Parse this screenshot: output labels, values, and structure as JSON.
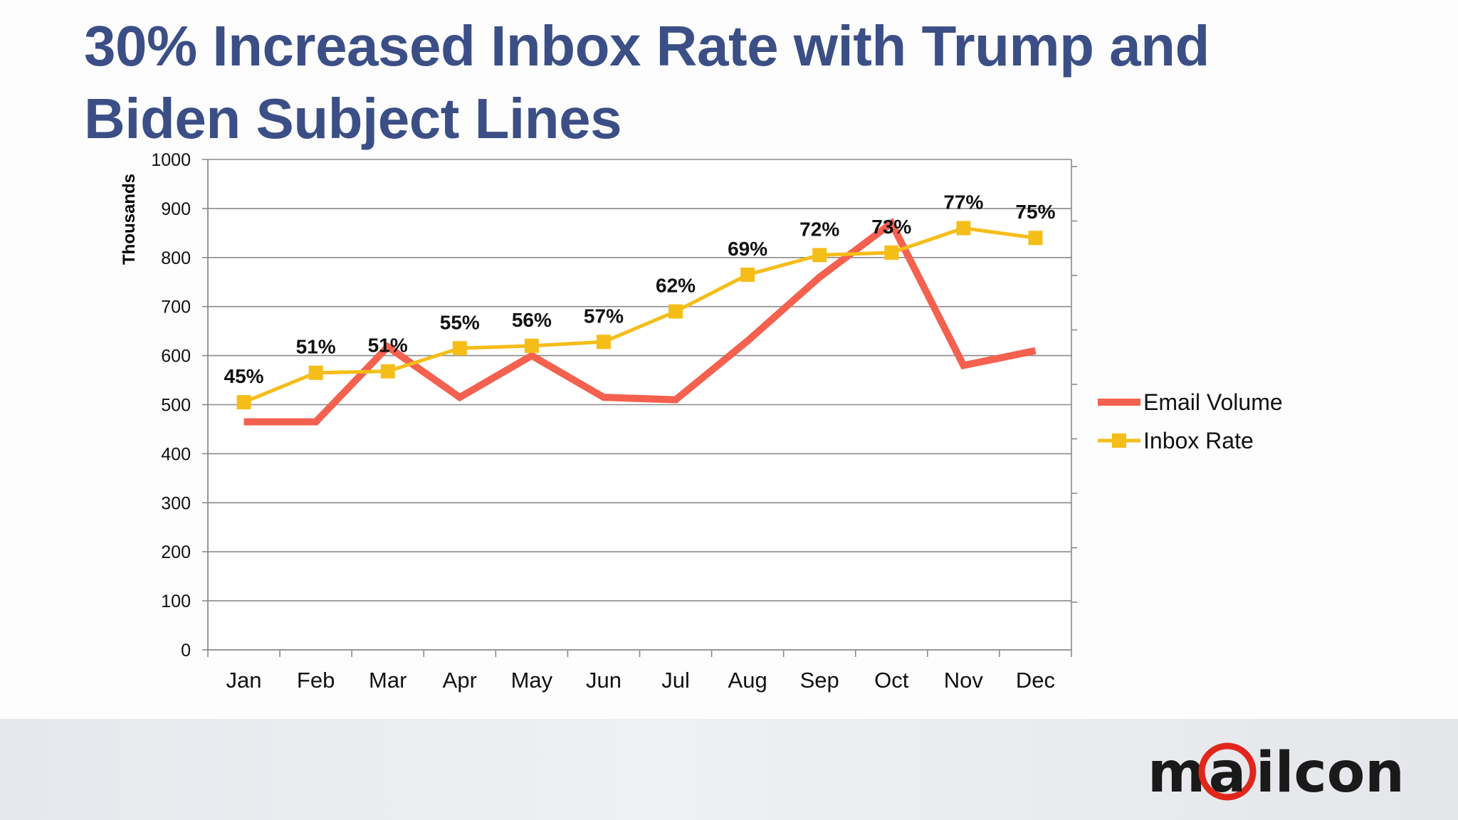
{
  "title": "30% Increased Inbox Rate with Trump and Biden Subject Lines",
  "brand": {
    "logo_text": "m@ilcon",
    "colors": {
      "title": "#3b4f86",
      "email_volume": "#f4614f",
      "inbox_rate": "#f5bd18",
      "logo_accent": "#e1261c",
      "logo_text": "#1a1a1a"
    }
  },
  "chart_data": {
    "type": "line",
    "title": "",
    "xlabel": "",
    "ylabel": "Thousands",
    "ylim": [
      0,
      1000
    ],
    "yticks": [
      0,
      100,
      200,
      300,
      400,
      500,
      600,
      700,
      800,
      900,
      1000
    ],
    "grid": true,
    "legend_position": "right",
    "categories": [
      "Jan",
      "Feb",
      "Mar",
      "Apr",
      "May",
      "Jun",
      "Jul",
      "Aug",
      "Sep",
      "Oct",
      "Nov",
      "Dec"
    ],
    "series": [
      {
        "name": "Email Volume",
        "color": "#f4614f",
        "marker": "none",
        "values": [
          465,
          465,
          618,
          515,
          600,
          515,
          510,
          630,
          760,
          870,
          580,
          610
        ]
      },
      {
        "name": "Inbox Rate",
        "color": "#f5bd18",
        "marker": "square",
        "values": [
          505,
          565,
          568,
          615,
          620,
          628,
          690,
          765,
          805,
          810,
          860,
          840
        ],
        "data_labels": [
          "45%",
          "51%",
          "51%",
          "55%",
          "56%",
          "57%",
          "62%",
          "69%",
          "72%",
          "73%",
          "77%",
          "75%"
        ]
      }
    ]
  }
}
